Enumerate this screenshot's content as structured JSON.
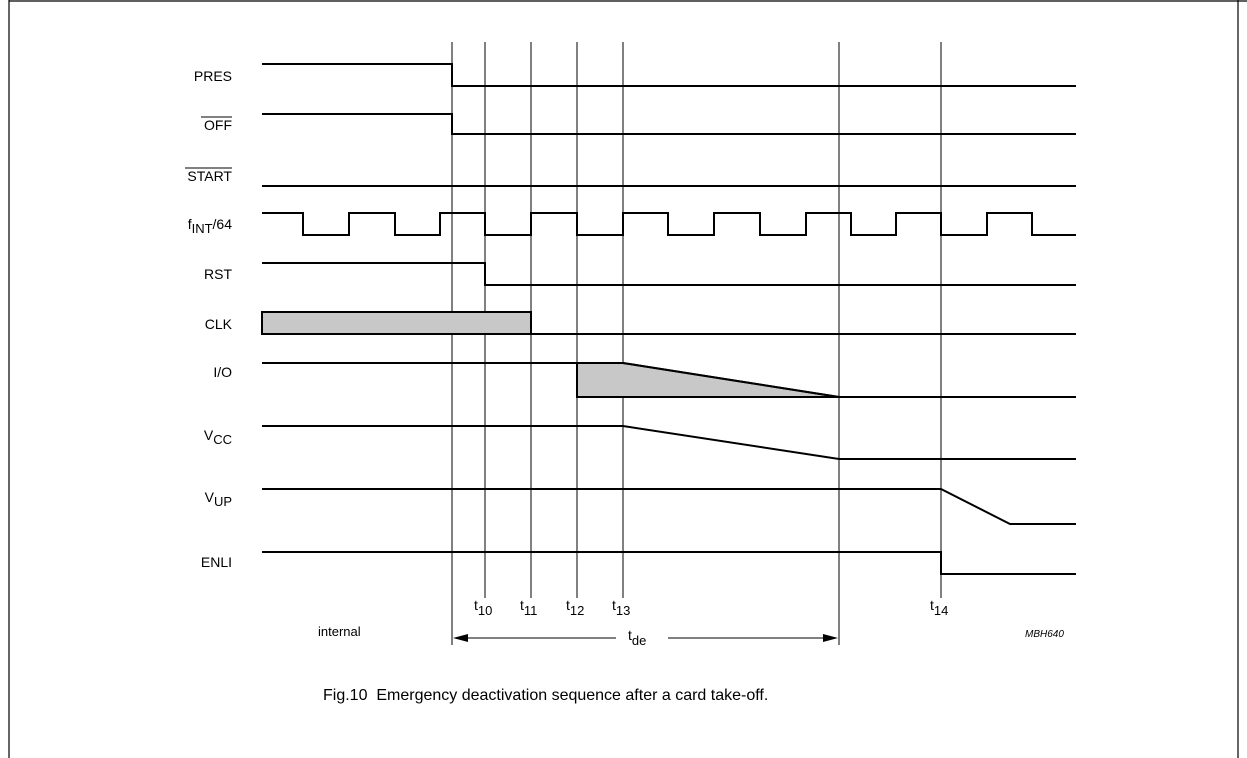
{
  "signals": [
    {
      "id": "pres",
      "label": "PRES"
    },
    {
      "id": "off",
      "label": "OFF"
    },
    {
      "id": "start",
      "label": "START"
    },
    {
      "id": "fint",
      "label_main": "f",
      "label_sub": "INT",
      "label_tail": "/64"
    },
    {
      "id": "rst",
      "label": "RST"
    },
    {
      "id": "clk",
      "label": "CLK"
    },
    {
      "id": "io",
      "label": "I/O"
    },
    {
      "id": "vcc",
      "label_main": "V",
      "label_sub": "CC"
    },
    {
      "id": "vup",
      "label_main": "V",
      "label_sub": "UP"
    },
    {
      "id": "enli",
      "label": "ENLI"
    }
  ],
  "timings": {
    "t10": {
      "main": "t",
      "sub": "10"
    },
    "t11": {
      "main": "t",
      "sub": "11"
    },
    "t12": {
      "main": "t",
      "sub": "12"
    },
    "t13": {
      "main": "t",
      "sub": "13"
    },
    "t14": {
      "main": "t",
      "sub": "14"
    },
    "tde": {
      "main": "t",
      "sub": "de"
    }
  },
  "internal_label": "internal",
  "figure_code": "MBH640",
  "caption": "Fig.10  Emergency deactivation sequence after a card take-off.",
  "colors": {
    "shade": "#c8c8c8",
    "line": "#000000"
  }
}
